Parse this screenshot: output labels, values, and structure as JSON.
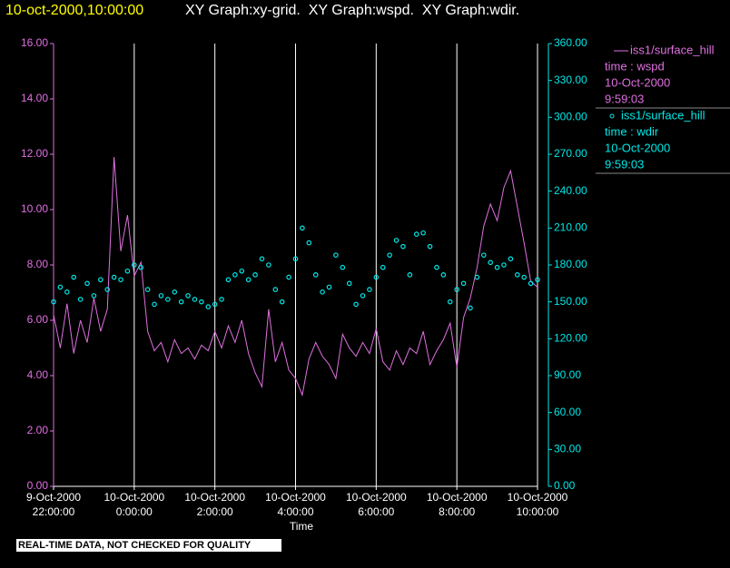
{
  "chart_data": {
    "type": "line-scatter",
    "header": {
      "timestamp": "10-oct-2000,10:00:00",
      "title": "XY Graph:xy-grid.  XY Graph:wspd.  XY Graph:wdir."
    },
    "xlabel": "Time",
    "footer": "REAL-TIME DATA, NOT CHECKED FOR QUALITY",
    "xlim": [
      "2000-10-09T22:00",
      "2000-10-10T10:00"
    ],
    "xticks": [
      {
        "value": "2000-10-09T22:00",
        "label": [
          "9-Oct-2000",
          "22:00:00"
        ]
      },
      {
        "value": "2000-10-10T00:00",
        "label": [
          "10-Oct-2000",
          "0:00:00"
        ]
      },
      {
        "value": "2000-10-10T02:00",
        "label": [
          "10-Oct-2000",
          "2:00:00"
        ]
      },
      {
        "value": "2000-10-10T04:00",
        "label": [
          "10-Oct-2000",
          "4:00:00"
        ]
      },
      {
        "value": "2000-10-10T06:00",
        "label": [
          "10-Oct-2000",
          "6:00:00"
        ]
      },
      {
        "value": "2000-10-10T08:00",
        "label": [
          "10-Oct-2000",
          "8:00:00"
        ]
      },
      {
        "value": "2000-10-10T10:00",
        "label": [
          "10-Oct-2000",
          "10:00:00"
        ]
      }
    ],
    "ylim": [
      0,
      16
    ],
    "yticks": [
      {
        "value": 0,
        "label": "0.00"
      },
      {
        "value": 2,
        "label": "2.00"
      },
      {
        "value": 4,
        "label": "4.00"
      },
      {
        "value": 6,
        "label": "6.00"
      },
      {
        "value": 8,
        "label": "8.00"
      },
      {
        "value": 10,
        "label": "10.00"
      },
      {
        "value": 12,
        "label": "12.00"
      },
      {
        "value": 14,
        "label": "14.00"
      },
      {
        "value": 16,
        "label": "16.00"
      }
    ],
    "y2lim": [
      0,
      360
    ],
    "y2ticks": [
      {
        "value": 0,
        "label": "0.00"
      },
      {
        "value": 30,
        "label": "30.00"
      },
      {
        "value": 60,
        "label": "60.00"
      },
      {
        "value": 90,
        "label": "90.00"
      },
      {
        "value": 120,
        "label": "120.00"
      },
      {
        "value": 150,
        "label": "150.00"
      },
      {
        "value": 180,
        "label": "180.00"
      },
      {
        "value": 210,
        "label": "210.00"
      },
      {
        "value": 240,
        "label": "240.00"
      },
      {
        "value": 270,
        "label": "270.00"
      },
      {
        "value": 300,
        "label": "300.00"
      },
      {
        "value": 330,
        "label": "330.00"
      },
      {
        "value": 360,
        "label": "360.00"
      }
    ],
    "grid": true,
    "x": [
      "2000-10-09T22:00",
      "2000-10-09T22:10",
      "2000-10-09T22:20",
      "2000-10-09T22:30",
      "2000-10-09T22:40",
      "2000-10-09T22:50",
      "2000-10-09T23:00",
      "2000-10-09T23:10",
      "2000-10-09T23:20",
      "2000-10-09T23:30",
      "2000-10-09T23:40",
      "2000-10-09T23:50",
      "2000-10-10T00:00",
      "2000-10-10T00:10",
      "2000-10-10T00:20",
      "2000-10-10T00:30",
      "2000-10-10T00:40",
      "2000-10-10T00:50",
      "2000-10-10T01:00",
      "2000-10-10T01:10",
      "2000-10-10T01:20",
      "2000-10-10T01:30",
      "2000-10-10T01:40",
      "2000-10-10T01:50",
      "2000-10-10T02:00",
      "2000-10-10T02:10",
      "2000-10-10T02:20",
      "2000-10-10T02:30",
      "2000-10-10T02:40",
      "2000-10-10T02:50",
      "2000-10-10T03:00",
      "2000-10-10T03:10",
      "2000-10-10T03:20",
      "2000-10-10T03:30",
      "2000-10-10T03:40",
      "2000-10-10T03:50",
      "2000-10-10T04:00",
      "2000-10-10T04:10",
      "2000-10-10T04:20",
      "2000-10-10T04:30",
      "2000-10-10T04:40",
      "2000-10-10T04:50",
      "2000-10-10T05:00",
      "2000-10-10T05:10",
      "2000-10-10T05:20",
      "2000-10-10T05:30",
      "2000-10-10T05:40",
      "2000-10-10T05:50",
      "2000-10-10T06:00",
      "2000-10-10T06:10",
      "2000-10-10T06:20",
      "2000-10-10T06:30",
      "2000-10-10T06:40",
      "2000-10-10T06:50",
      "2000-10-10T07:00",
      "2000-10-10T07:10",
      "2000-10-10T07:20",
      "2000-10-10T07:30",
      "2000-10-10T07:40",
      "2000-10-10T07:50",
      "2000-10-10T08:00",
      "2000-10-10T08:10",
      "2000-10-10T08:20",
      "2000-10-10T08:30",
      "2000-10-10T08:40",
      "2000-10-10T08:50",
      "2000-10-10T09:00",
      "2000-10-10T09:10",
      "2000-10-10T09:20",
      "2000-10-10T09:30",
      "2000-10-10T09:40",
      "2000-10-10T09:50",
      "2000-10-10T10:00"
    ],
    "series": [
      {
        "name": "iss1/surface_hill",
        "legend_lines": [
          "time : wspd",
          "10-Oct-2000",
          "9:59:03"
        ],
        "type": "line",
        "color": "#e070e0",
        "values": [
          6.2,
          5.0,
          6.6,
          4.8,
          6.0,
          5.2,
          6.8,
          5.6,
          6.4,
          11.9,
          8.5,
          9.8,
          7.6,
          8.1,
          5.6,
          4.9,
          5.2,
          4.5,
          5.3,
          4.8,
          5.0,
          4.6,
          5.1,
          4.9,
          5.6,
          5.0,
          5.8,
          5.2,
          6.0,
          4.8,
          4.1,
          3.6,
          6.4,
          4.5,
          5.2,
          4.2,
          3.9,
          3.3,
          4.6,
          5.2,
          4.7,
          4.4,
          3.9,
          5.5,
          5.0,
          4.7,
          5.2,
          4.8,
          5.7,
          4.5,
          4.2,
          4.9,
          4.4,
          5.0,
          4.8,
          5.6,
          4.4,
          4.9,
          5.3,
          5.9,
          4.3,
          6.1,
          6.8,
          7.9,
          9.4,
          10.2,
          9.6,
          10.8,
          11.4,
          10.1,
          8.8,
          7.4,
          7.2
        ]
      },
      {
        "name": "iss1/surface_hill",
        "legend_lines": [
          "time : wdir",
          "10-Oct-2000",
          "9:59:03"
        ],
        "type": "scatter",
        "axis": "y2",
        "color": "#00e8e8",
        "values": [
          150,
          162,
          158,
          170,
          152,
          165,
          155,
          168,
          160,
          170,
          168,
          175,
          180,
          178,
          160,
          148,
          155,
          152,
          158,
          150,
          155,
          152,
          150,
          146,
          148,
          152,
          168,
          172,
          175,
          168,
          172,
          185,
          180,
          160,
          150,
          170,
          185,
          210,
          198,
          172,
          158,
          162,
          188,
          178,
          165,
          148,
          155,
          160,
          170,
          178,
          188,
          200,
          195,
          172,
          205,
          206,
          195,
          178,
          172,
          150,
          160,
          165,
          145,
          170,
          188,
          182,
          178,
          180,
          185,
          172,
          170,
          165,
          168
        ]
      }
    ]
  }
}
